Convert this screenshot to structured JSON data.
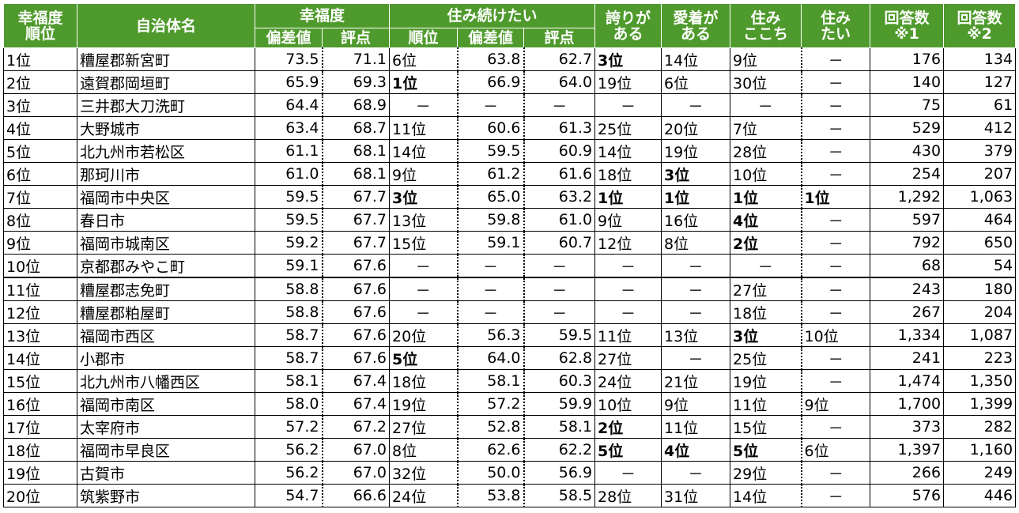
{
  "table": {
    "header": [
      {
        "lines": [
          "幸福度",
          "順位"
        ]
      },
      {
        "lines": [
          "自治体名"
        ]
      },
      {
        "lines": [
          "幸福度"
        ],
        "sub": [
          "偏差値",
          "評点"
        ]
      },
      {
        "lines": [
          "住み続けたい"
        ],
        "sub": [
          "順位",
          "偏差値",
          "評点"
        ]
      },
      {
        "lines": [
          "誇りが",
          "ある"
        ]
      },
      {
        "lines": [
          "愛着が",
          "ある"
        ]
      },
      {
        "lines": [
          "住み",
          "ここち"
        ]
      },
      {
        "lines": [
          "住み",
          "たい"
        ]
      },
      {
        "lines": [
          "回答数",
          "※1"
        ]
      },
      {
        "lines": [
          "回答数",
          "※2"
        ]
      }
    ],
    "rows": [
      [
        "1位",
        "糟屋郡新宮町",
        "73.5",
        "71.1",
        "6位",
        "63.8",
        "62.7",
        "3位",
        "14位",
        "9位",
        "－",
        "176",
        "134"
      ],
      [
        "2位",
        "遠賀郡岡垣町",
        "65.9",
        "69.3",
        "1位",
        "66.9",
        "64.0",
        "19位",
        "6位",
        "30位",
        "－",
        "140",
        "127"
      ],
      [
        "3位",
        "三井郡大刀洗町",
        "64.4",
        "68.9",
        "－",
        "－",
        "－",
        "－",
        "－",
        "－",
        "－",
        "75",
        "61"
      ],
      [
        "4位",
        "大野城市",
        "63.4",
        "68.7",
        "11位",
        "60.6",
        "61.3",
        "25位",
        "20位",
        "7位",
        "－",
        "529",
        "412"
      ],
      [
        "5位",
        "北九州市若松区",
        "61.1",
        "68.1",
        "14位",
        "59.5",
        "60.9",
        "14位",
        "19位",
        "28位",
        "－",
        "430",
        "379"
      ],
      [
        "6位",
        "那珂川市",
        "61.0",
        "68.1",
        "9位",
        "61.2",
        "61.6",
        "18位",
        "3位",
        "10位",
        "－",
        "254",
        "207"
      ],
      [
        "7位",
        "福岡市中央区",
        "59.5",
        "67.7",
        "3位",
        "65.0",
        "63.2",
        "1位",
        "1位",
        "1位",
        "1位",
        "1,292",
        "1,063"
      ],
      [
        "8位",
        "春日市",
        "59.5",
        "67.7",
        "13位",
        "59.8",
        "61.0",
        "9位",
        "16位",
        "4位",
        "－",
        "597",
        "464"
      ],
      [
        "9位",
        "福岡市城南区",
        "59.2",
        "67.7",
        "15位",
        "59.1",
        "60.7",
        "12位",
        "8位",
        "2位",
        "－",
        "792",
        "650"
      ],
      [
        "10位",
        "京都郡みやこ町",
        "59.1",
        "67.6",
        "－",
        "－",
        "－",
        "－",
        "－",
        "－",
        "－",
        "68",
        "54"
      ],
      [
        "11位",
        "糟屋郡志免町",
        "58.8",
        "67.6",
        "－",
        "－",
        "－",
        "－",
        "－",
        "27位",
        "－",
        "243",
        "180"
      ],
      [
        "12位",
        "糟屋郡粕屋町",
        "58.8",
        "67.6",
        "－",
        "－",
        "－",
        "－",
        "－",
        "18位",
        "－",
        "267",
        "204"
      ],
      [
        "13位",
        "福岡市西区",
        "58.7",
        "67.6",
        "20位",
        "56.3",
        "59.5",
        "11位",
        "13位",
        "3位",
        "10位",
        "1,334",
        "1,087"
      ],
      [
        "14位",
        "小郡市",
        "58.7",
        "67.6",
        "5位",
        "64.0",
        "62.8",
        "27位",
        "－",
        "25位",
        "－",
        "241",
        "223"
      ],
      [
        "15位",
        "北九州市八幡西区",
        "58.1",
        "67.4",
        "18位",
        "58.1",
        "60.3",
        "24位",
        "21位",
        "19位",
        "－",
        "1,474",
        "1,350"
      ],
      [
        "16位",
        "福岡市南区",
        "58.0",
        "67.4",
        "19位",
        "57.2",
        "59.9",
        "10位",
        "9位",
        "11位",
        "9位",
        "1,700",
        "1,399"
      ],
      [
        "17位",
        "太宰府市",
        "57.2",
        "67.2",
        "27位",
        "52.8",
        "58.1",
        "2位",
        "11位",
        "15位",
        "－",
        "373",
        "282"
      ],
      [
        "18位",
        "福岡市早良区",
        "56.2",
        "67.0",
        "8位",
        "62.6",
        "62.2",
        "5位",
        "4位",
        "5位",
        "6位",
        "1,397",
        "1,160"
      ],
      [
        "19位",
        "古賀市",
        "56.2",
        "67.0",
        "32位",
        "50.0",
        "56.9",
        "－",
        "－",
        "29位",
        "－",
        "266",
        "249"
      ],
      [
        "20位",
        "筑紫野市",
        "54.7",
        "66.6",
        "24位",
        "53.8",
        "58.5",
        "28位",
        "31位",
        "14位",
        "－",
        "576",
        "446"
      ]
    ]
  }
}
